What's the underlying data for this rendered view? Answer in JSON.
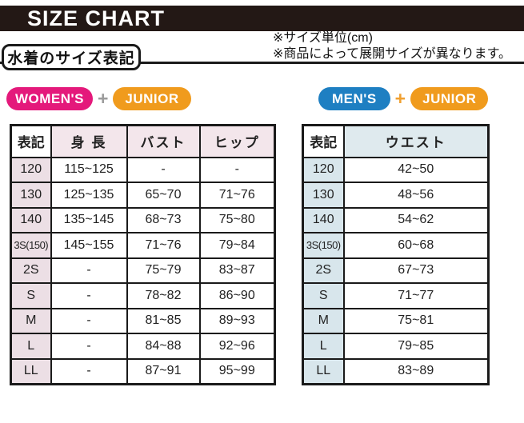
{
  "header": {
    "title": "SIZE CHART"
  },
  "notes": {
    "line1": "※サイズ単位(cm)",
    "line2": "※商品によって展開サイズが異なります。"
  },
  "section_label": "水着のサイズ表記",
  "colors": {
    "title_bar": "#231815",
    "womens_badge": "#e4197b",
    "mens_badge": "#1e7fc2",
    "junior_badge": "#f09b1d",
    "womens_table_tint": "#f3e6eb",
    "mens_table_tint": "#dfeaee"
  },
  "women_section": {
    "badges": {
      "primary": "WOMEN'S",
      "plus": "+",
      "secondary": "JUNIOR"
    },
    "table": {
      "headers": [
        "表記",
        "身 長",
        "バスト",
        "ヒップ"
      ],
      "rows": [
        [
          "120",
          "115~125",
          "-",
          "-"
        ],
        [
          "130",
          "125~135",
          "65~70",
          "71~76"
        ],
        [
          "140",
          "135~145",
          "68~73",
          "75~80"
        ],
        [
          "3S(150)",
          "145~155",
          "71~76",
          "79~84"
        ],
        [
          "2S",
          "-",
          "75~79",
          "83~87"
        ],
        [
          "S",
          "-",
          "78~82",
          "86~90"
        ],
        [
          "M",
          "-",
          "81~85",
          "89~93"
        ],
        [
          "L",
          "-",
          "84~88",
          "92~96"
        ],
        [
          "LL",
          "-",
          "87~91",
          "95~99"
        ]
      ]
    }
  },
  "men_section": {
    "badges": {
      "primary": "MEN'S",
      "plus": "+",
      "secondary": "JUNIOR"
    },
    "table": {
      "headers": [
        "表記",
        "ウエスト"
      ],
      "rows": [
        [
          "120",
          "42~50"
        ],
        [
          "130",
          "48~56"
        ],
        [
          "140",
          "54~62"
        ],
        [
          "3S(150)",
          "60~68"
        ],
        [
          "2S",
          "67~73"
        ],
        [
          "S",
          "71~77"
        ],
        [
          "M",
          "75~81"
        ],
        [
          "L",
          "79~85"
        ],
        [
          "LL",
          "83~89"
        ]
      ]
    }
  }
}
